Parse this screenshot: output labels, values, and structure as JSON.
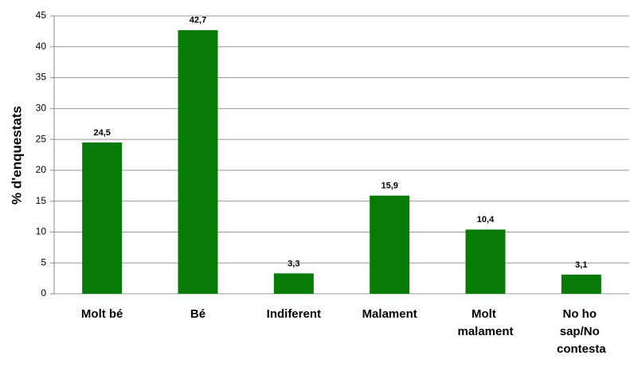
{
  "chart_data": {
    "type": "bar",
    "y_label": "% d'enquestats",
    "categories": [
      "Molt bé",
      "Bé",
      "Indiferent",
      "Malament",
      "Molt malament",
      "No ho sap/No contesta"
    ],
    "values": [
      24.5,
      42.7,
      3.3,
      15.9,
      10.4,
      3.1
    ],
    "value_labels": [
      "24,5",
      "42,7",
      "3,3",
      "15,9",
      "10,4",
      "3,1"
    ],
    "color": "#087a08",
    "ylim": [
      0,
      45
    ],
    "yticks": [
      0,
      5,
      10,
      15,
      20,
      25,
      30,
      35,
      40,
      45
    ],
    "grid": true
  }
}
